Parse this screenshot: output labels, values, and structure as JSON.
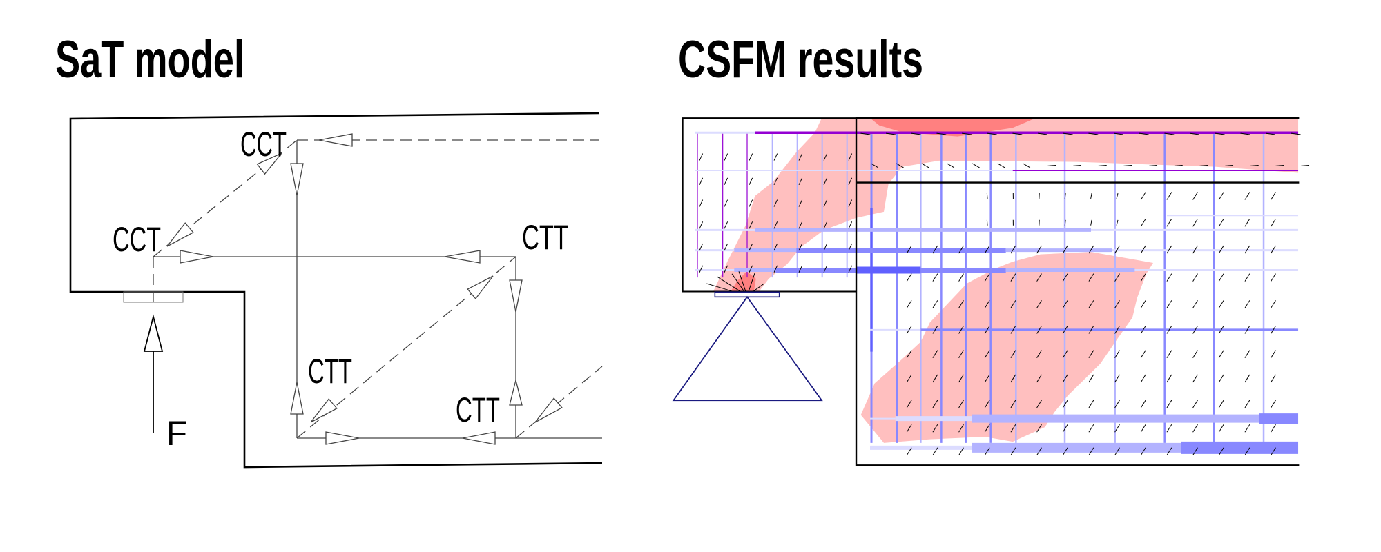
{
  "left_panel": {
    "title": "SaT model",
    "nodes": {
      "top_node": "CCT",
      "left_node": "CCT",
      "right_node": "CTT",
      "bottom_left_node": "CTT",
      "bottom_right_node": "CTT"
    },
    "force_label": "F"
  },
  "right_panel": {
    "title": "CSFM results"
  },
  "colors": {
    "outline": "#000000",
    "member": "#444444",
    "compression_light": "#ffbfbf",
    "compression_high": "#ff8080",
    "reinforcement_strong": "#6060ff",
    "reinforcement_medium": "#8888ff",
    "reinforcement_light": "#b3b3ff",
    "reinforcement_faint": "#dcdcff",
    "reinforcement_top": "#9400d3",
    "support": "#1a1a80"
  }
}
